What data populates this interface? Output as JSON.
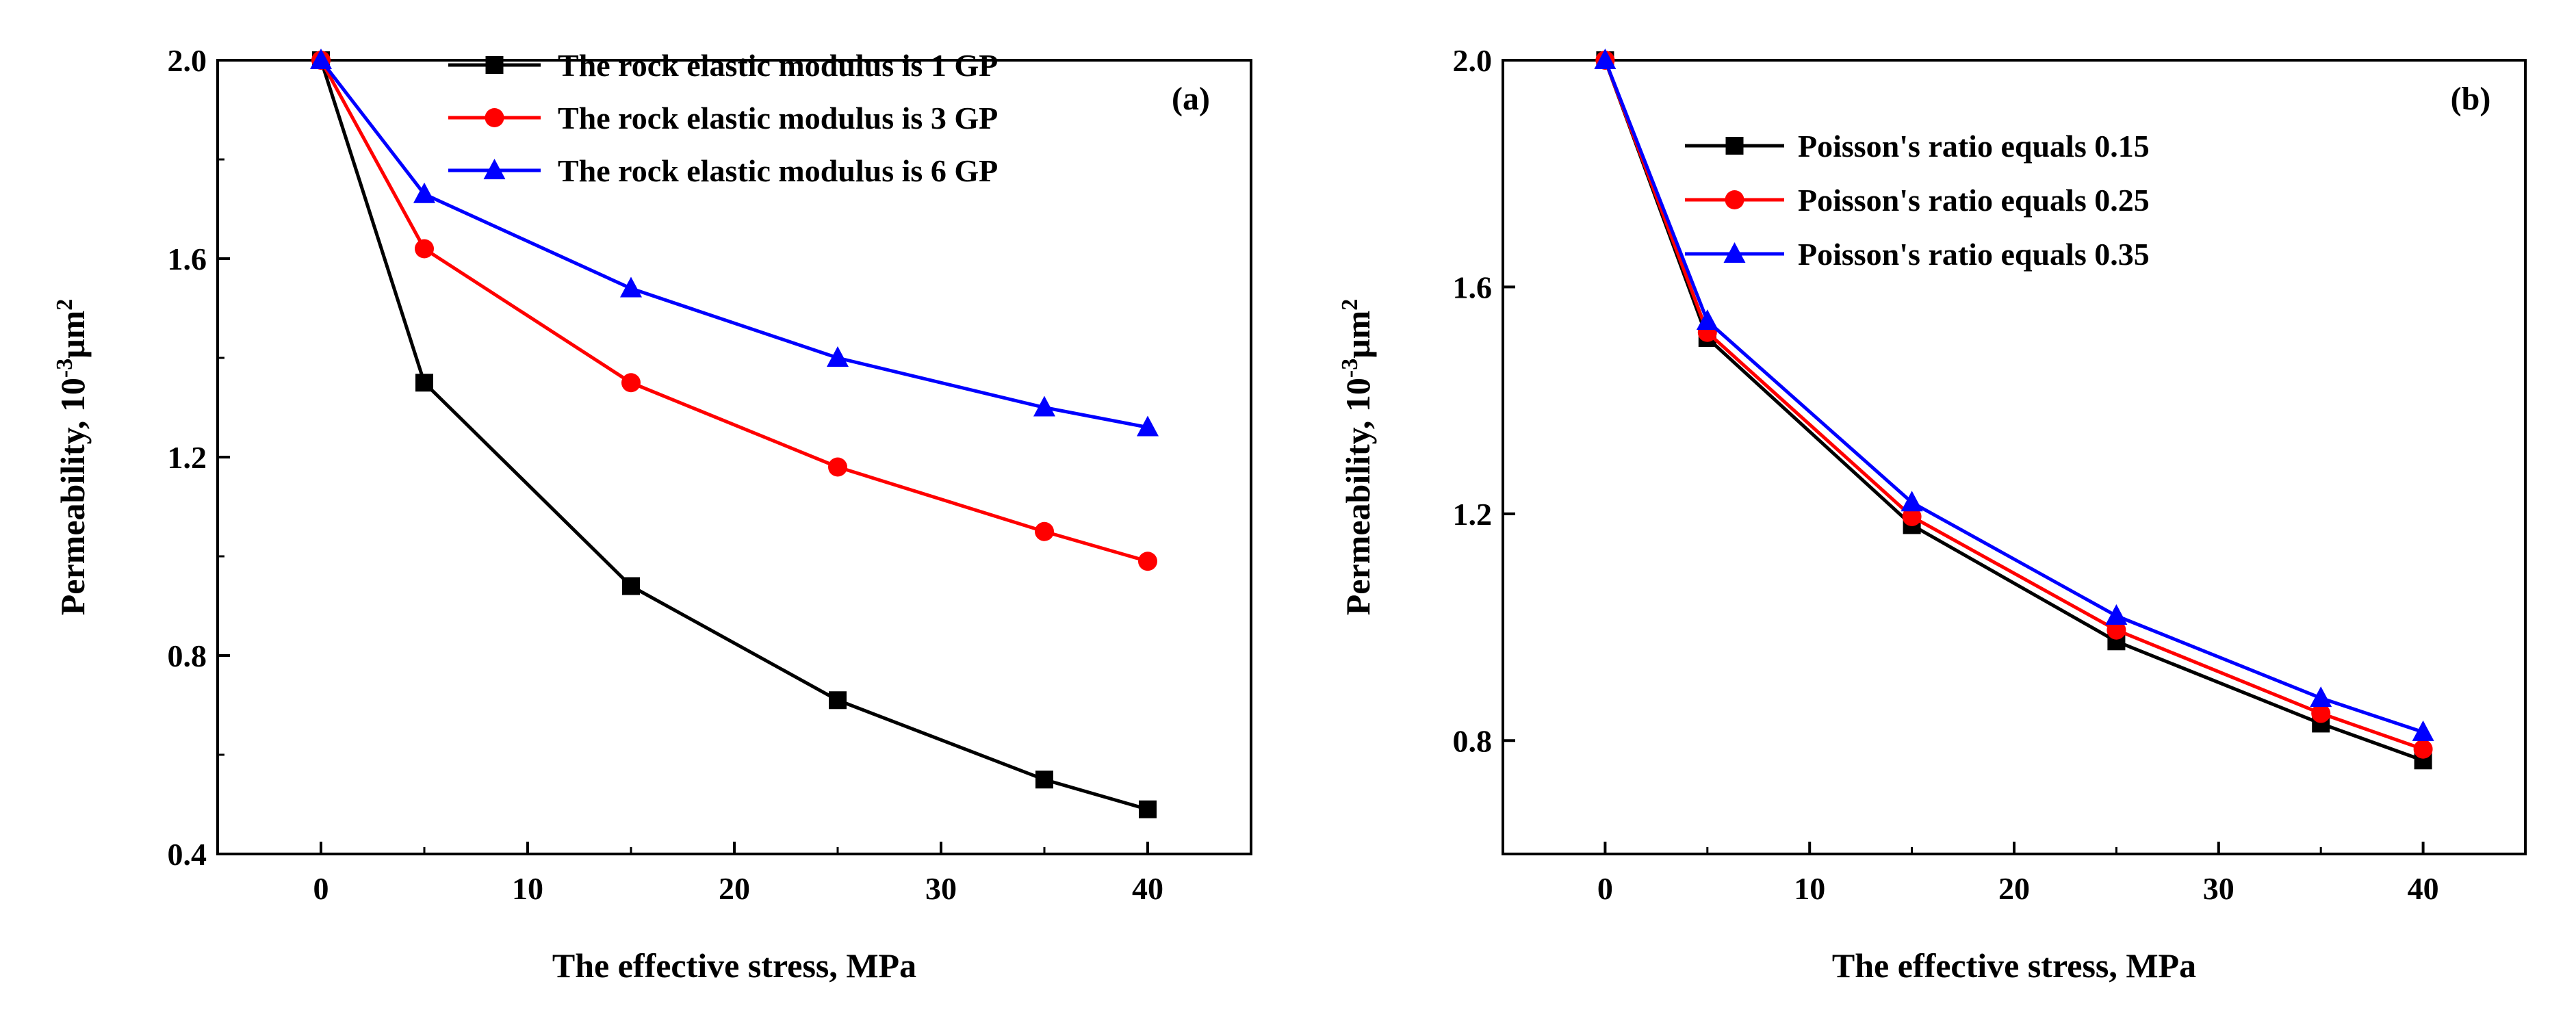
{
  "chart_data": [
    {
      "type": "line",
      "panel_label": "(a)",
      "xlabel": "The effective stress, MPa",
      "ylabel": {
        "main": "Permeability, 10",
        "sup": "-3",
        "unit": "μm",
        "unit_sup": "2"
      },
      "xlim": [
        -5,
        45
      ],
      "ylim": [
        0.4,
        2.0
      ],
      "xticks": [
        0,
        10,
        20,
        30,
        40
      ],
      "yticks": [
        0.4,
        0.8,
        1.2,
        1.6,
        2.0
      ],
      "ytick_labels": [
        "0.4",
        "0.8",
        "1.2",
        "1.6",
        "2.0"
      ],
      "xtick_labels": [
        "0",
        "10",
        "20",
        "30",
        "40"
      ],
      "legend_position": "top-right",
      "x": [
        0,
        5,
        15,
        25,
        35,
        40
      ],
      "series": [
        {
          "name": "The rock elastic modulus is 1 GP",
          "color": "#000000",
          "marker": "square",
          "values": [
            2.0,
            1.35,
            0.94,
            0.71,
            0.55,
            0.49
          ]
        },
        {
          "name": "The rock elastic modulus is 3 GP",
          "color": "#ff0000",
          "marker": "circle",
          "values": [
            2.0,
            1.62,
            1.35,
            1.18,
            1.05,
            0.99
          ]
        },
        {
          "name": "The rock elastic modulus is 6 GP",
          "color": "#0000ff",
          "marker": "triangle",
          "values": [
            2.0,
            1.73,
            1.54,
            1.4,
            1.3,
            1.26
          ]
        }
      ]
    },
    {
      "type": "line",
      "panel_label": "(b)",
      "xlabel": "The effective stress, MPa",
      "ylabel": {
        "main": "Permeability, 10",
        "sup": "-3",
        "unit": "μm",
        "unit_sup": "2"
      },
      "xlim": [
        -5,
        45
      ],
      "ylim": [
        0.6,
        2.0
      ],
      "xticks": [
        0,
        10,
        20,
        30,
        40
      ],
      "yticks": [
        0.8,
        1.2,
        1.6,
        2.0
      ],
      "ytick_labels": [
        "0.8",
        "1.2",
        "1.6",
        "2.0"
      ],
      "xtick_labels": [
        "0",
        "10",
        "20",
        "30",
        "40"
      ],
      "legend_position": "top-left",
      "x": [
        0,
        5,
        15,
        25,
        35,
        40
      ],
      "series": [
        {
          "name": "Poisson's ratio equals 0.15",
          "color": "#000000",
          "marker": "square",
          "values": [
            2.0,
            1.51,
            1.18,
            0.975,
            0.83,
            0.765
          ]
        },
        {
          "name": "Poisson's ratio equals 0.25",
          "color": "#ff0000",
          "marker": "circle",
          "values": [
            2.0,
            1.52,
            1.195,
            0.995,
            0.848,
            0.785
          ]
        },
        {
          "name": "Poisson's ratio equals 0.35",
          "color": "#0000ff",
          "marker": "triangle",
          "values": [
            2.0,
            1.54,
            1.22,
            1.02,
            0.875,
            0.815
          ]
        }
      ]
    }
  ]
}
